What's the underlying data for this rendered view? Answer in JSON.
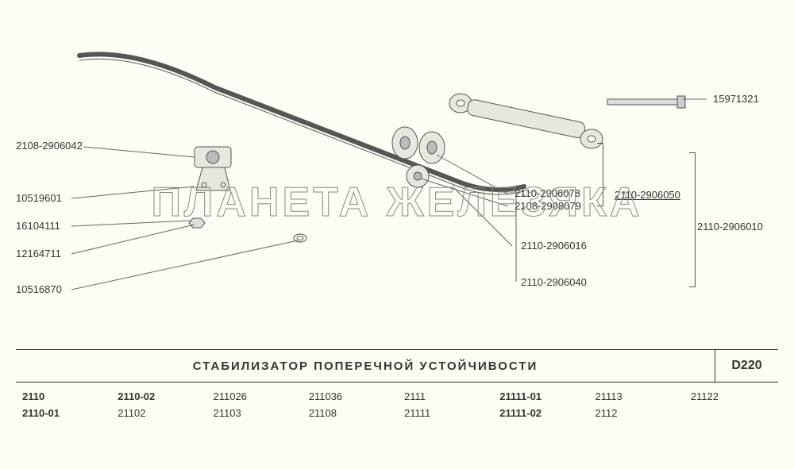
{
  "watermark_text": "ПЛАНЕТА ЖЕЛЕЗЯКА",
  "labels": {
    "l1": "2108-2906042",
    "l2": "10519601",
    "l3": "16104111",
    "l4": "12164711",
    "l5": "10516870",
    "r1": "15971321",
    "r2": "2110-2906078",
    "r3": "2108-2908079",
    "r4": "2110-2906050",
    "r5": "2110-2906010",
    "r6": "2110-2906016",
    "r7": "2110-2906040"
  },
  "table": {
    "title": "Стабилизатор поперечной устойчивости",
    "code": "D220",
    "models": [
      [
        "2110",
        "2110-02",
        "211026",
        "211036",
        "2111",
        "21111-01",
        "21113",
        "21122"
      ],
      [
        "2110-01",
        "21102",
        "21103",
        "21108",
        "21111",
        "21111-02",
        "2112",
        ""
      ]
    ],
    "bold_flags": [
      [
        true,
        true,
        false,
        false,
        false,
        true,
        false,
        false
      ],
      [
        true,
        false,
        false,
        false,
        false,
        true,
        false,
        false
      ]
    ]
  },
  "style": {
    "bg": "#fdfcf5",
    "line_color": "#666",
    "text_color": "#333",
    "font_size_label": 13,
    "font_size_title": 15,
    "font_size_code": 16
  }
}
